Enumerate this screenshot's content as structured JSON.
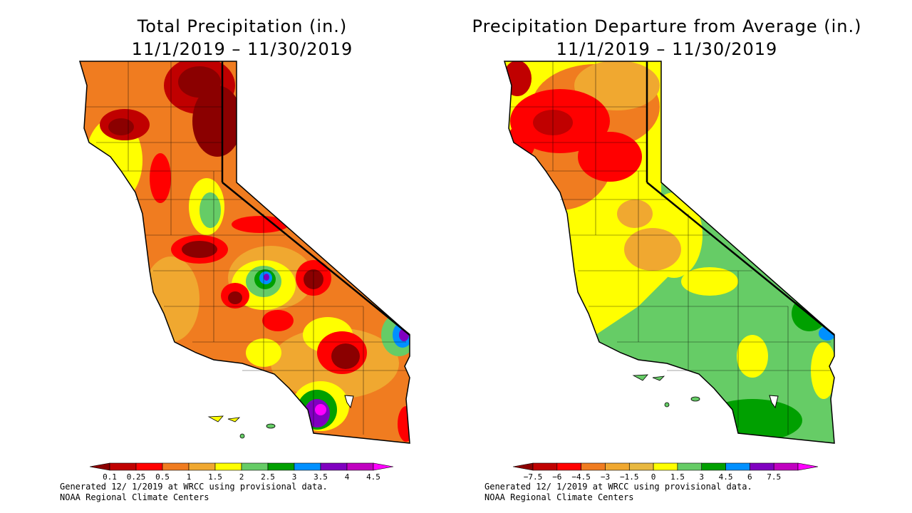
{
  "panels": [
    {
      "id": "total",
      "title_line1": "Total Precipitation (in.)",
      "title_line2": "11/1/2019 – 11/30/2019",
      "legend": {
        "colors": [
          "#8b0000",
          "#c00000",
          "#ff0000",
          "#f07c20",
          "#f0a830",
          "#ffff00",
          "#66cc66",
          "#00a000",
          "#0090ff",
          "#8000c0",
          "#c000c0",
          "#ff00ff"
        ],
        "labels": [
          "0.1",
          "0.25",
          "0.5",
          "1",
          "1.5",
          "2",
          "2.5",
          "3",
          "3.5",
          "4",
          "4.5"
        ]
      },
      "footer_line1": "Generated 12/ 1/2019 at WRCC using provisional data.",
      "footer_line2": "NOAA Regional Climate Centers"
    },
    {
      "id": "departure",
      "title_line1": "Precipitation Departure from Average (in.)",
      "title_line2": "11/1/2019 – 11/30/2019",
      "legend": {
        "colors": [
          "#8b0000",
          "#c00000",
          "#ff0000",
          "#f07c20",
          "#f0a830",
          "#e8b840",
          "#ffff00",
          "#66cc66",
          "#00a000",
          "#0090ff",
          "#8000c0",
          "#c000c0",
          "#ff00ff"
        ],
        "labels": [
          "−7.5",
          "−6",
          "−4.5",
          "−3",
          "−1.5",
          "0",
          "1.5",
          "3",
          "4.5",
          "6",
          "7.5"
        ]
      },
      "footer_line1": "Generated 12/ 1/2019 at WRCC using provisional data.",
      "footer_line2": "NOAA Regional Climate Centers"
    }
  ]
}
